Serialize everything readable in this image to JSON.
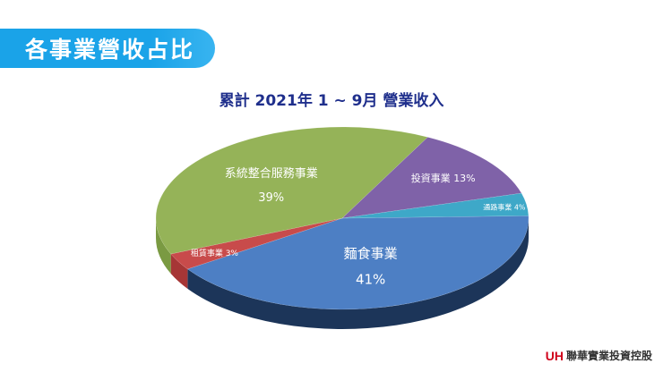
{
  "header": {
    "title": "各事業營收占比"
  },
  "chart_data": {
    "type": "pie",
    "title": "累計 2021年 1 ~ 9月 營業收入",
    "slices": [
      {
        "label": "麵食事業",
        "value": 41,
        "value_label": "41%",
        "color": "#4d7fc4",
        "side_color": "#1c3559"
      },
      {
        "label": "租賃事業",
        "value": 3,
        "value_label": "3%",
        "color": "#c84b4b",
        "side_color": "#a63636"
      },
      {
        "label": "系統整合服務事業",
        "value": 39,
        "value_label": "39%",
        "color": "#95b358",
        "side_color": "#7a9a42"
      },
      {
        "label": "投資事業",
        "value": 13,
        "value_label": "13%",
        "color": "#7f62a8",
        "side_color": "#5a4380"
      },
      {
        "label": "通路事業",
        "value": 4,
        "value_label": "4%",
        "color": "#3ea8c8",
        "side_color": "#2a7f99"
      }
    ]
  },
  "footer": {
    "logo_text": "UH",
    "company_name": "聯華實業投資控股"
  }
}
